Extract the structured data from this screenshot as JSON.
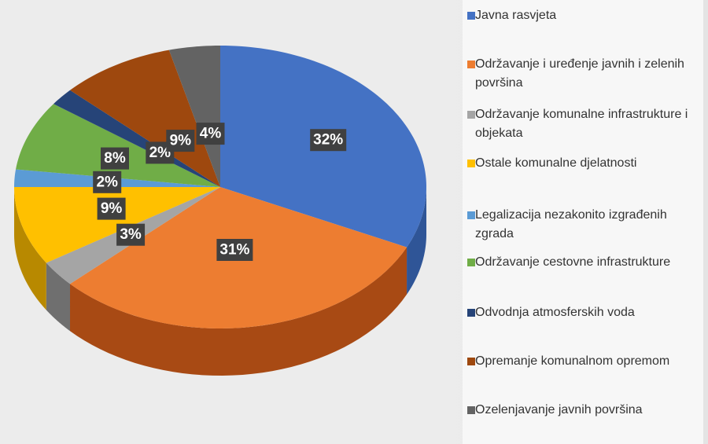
{
  "chart_data": {
    "type": "pie",
    "title": "",
    "legend_position": "right",
    "slices": [
      {
        "label": "Javna rasvjeta",
        "value": 32,
        "display": "32%",
        "color": "#4472C4",
        "side": "#2F5597"
      },
      {
        "label": "Održavanje i uređenje javnih i zelenih površina",
        "value": 31,
        "display": "31%",
        "color": "#ED7D31",
        "side": "#A84A14"
      },
      {
        "label": "Održavanje komunalne infrastrukture i objekata",
        "value": 3,
        "display": "3%",
        "color": "#A5A5A5",
        "side": "#6F6F6F"
      },
      {
        "label": "Ostale komunalne djelatnosti",
        "value": 9,
        "display": "9%",
        "color": "#FFC000",
        "side": "#B88900"
      },
      {
        "label": "Legalizacija nezakonito izgrađenih zgrada",
        "value": 2,
        "display": "2%",
        "color": "#5B9BD5",
        "side": "#3E6F9D"
      },
      {
        "label": "Održavanje cestovne infrastrukture",
        "value": 8,
        "display": "8%",
        "color": "#70AD47",
        "side": "#4E7A31"
      },
      {
        "label": "Odvodnja atmosferskih voda",
        "value": 2,
        "display": "2%",
        "color": "#264478",
        "side": "#172B4D"
      },
      {
        "label": "Opremanje komunalnom opremom",
        "value": 9,
        "display": "9%",
        "color": "#9E480E",
        "side": "#6B2F08"
      },
      {
        "label": "Ozelenjavanje javnih površina",
        "value": 4,
        "display": "4%",
        "color": "#636363",
        "side": "#404040"
      }
    ]
  }
}
